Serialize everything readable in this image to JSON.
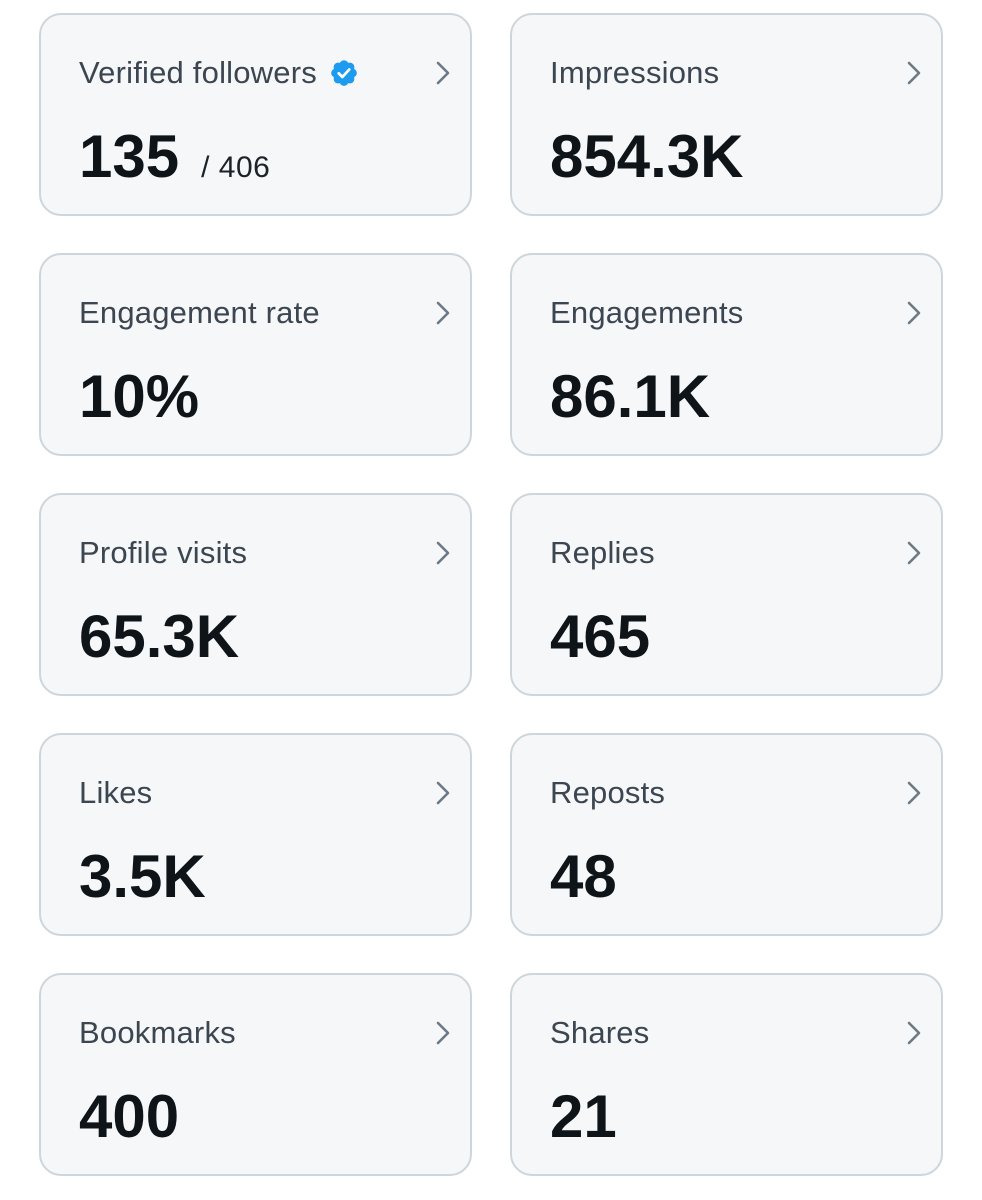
{
  "colors": {
    "card_background": "#f5f7f9",
    "card_border": "#cdd6dc",
    "label_text": "#3c4651",
    "value_text": "#0f1419",
    "verified_badge": "#1d9bf0",
    "chevron": "#6a7a86"
  },
  "icons": {
    "verified": "verified-badge-icon",
    "chevron": "chevron-right-icon"
  },
  "cards": [
    {
      "label": "Verified followers",
      "value": "135",
      "total": "/ 406",
      "verified": true
    },
    {
      "label": "Impressions",
      "value": "854.3K"
    },
    {
      "label": "Engagement rate",
      "value": "10%"
    },
    {
      "label": "Engagements",
      "value": "86.1K"
    },
    {
      "label": "Profile visits",
      "value": "65.3K"
    },
    {
      "label": "Replies",
      "value": "465"
    },
    {
      "label": "Likes",
      "value": "3.5K"
    },
    {
      "label": "Reposts",
      "value": "48"
    },
    {
      "label": "Bookmarks",
      "value": "400"
    },
    {
      "label": "Shares",
      "value": "21"
    }
  ]
}
